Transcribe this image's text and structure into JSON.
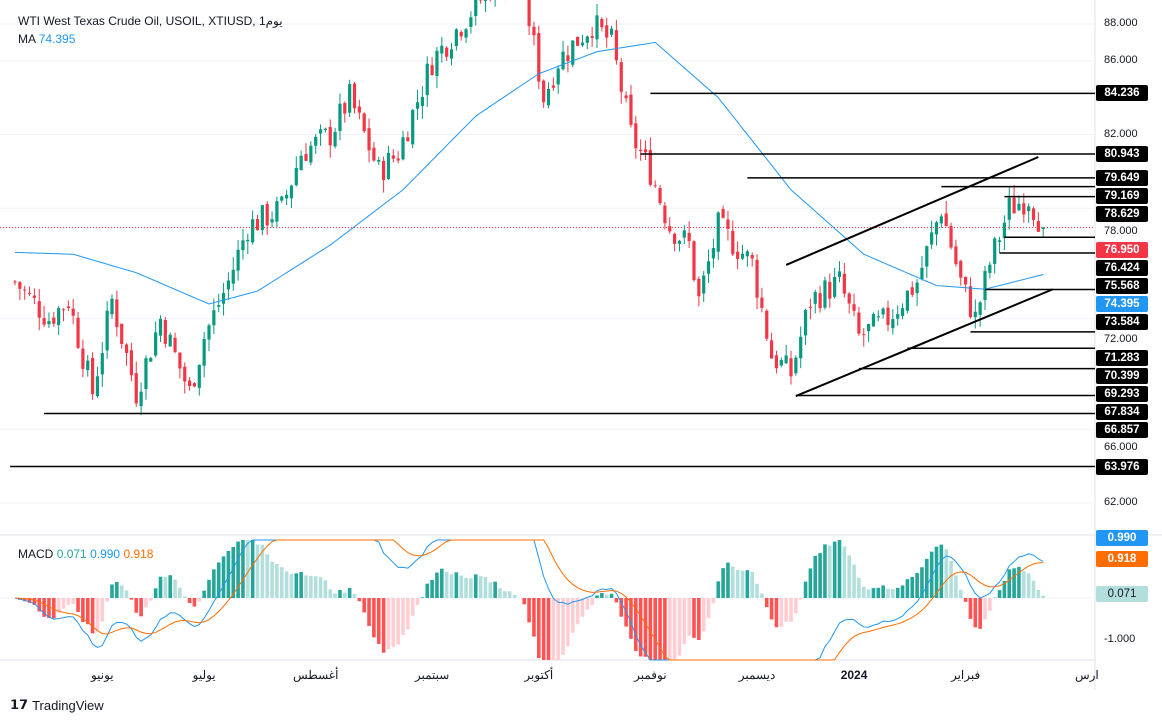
{
  "header": {
    "title": "WTI West Texas Crude Oil, USOIL, XTIUSD, 1يوم",
    "ma_label": "MA",
    "ma_value": "74.395",
    "macd_label": "MACD",
    "macd_hist": "0.071",
    "macd_line": "0.990",
    "macd_signal": "0.918"
  },
  "footer": {
    "brand": "TradingView"
  },
  "colors": {
    "up": "#089981",
    "down": "#f23645",
    "ma": "#2196f3",
    "signal": "#ff6d00",
    "level": "#000000"
  },
  "chart_data": {
    "type": "candlestick",
    "title": "WTI West Texas Crude Oil, USOIL, XTIUSD, 1D",
    "ylim": [
      62,
      88.9
    ],
    "y_ticks": [
      "88.000",
      "86.000",
      "82.000",
      "78.000",
      "72.000",
      "66.000",
      "62.000"
    ],
    "y_tick_values": [
      88,
      86,
      82,
      78,
      72,
      66,
      62
    ],
    "x_labels": [
      {
        "text": "يونيو",
        "index": 18
      },
      {
        "text": "يوليو",
        "index": 39
      },
      {
        "text": "أغسطس",
        "index": 62
      },
      {
        "text": "سبتمبر",
        "index": 86
      },
      {
        "text": "أكتوبر",
        "index": 108
      },
      {
        "text": "نوفمبر",
        "index": 131
      },
      {
        "text": "ديسمبر",
        "index": 153
      },
      {
        "text": "2024",
        "index": 173
      },
      {
        "text": "فبراير",
        "index": 196
      },
      {
        "text": "ارس",
        "index": 221
      }
    ],
    "close_path": [
      [
        0,
        74
      ],
      [
        7,
        72
      ],
      [
        11,
        73
      ],
      [
        16,
        68
      ],
      [
        20,
        73
      ],
      [
        25,
        68
      ],
      [
        30,
        72
      ],
      [
        36,
        68
      ],
      [
        39,
        71
      ],
      [
        44,
        74
      ],
      [
        48,
        77
      ],
      [
        55,
        78
      ],
      [
        59,
        81
      ],
      [
        65,
        82
      ],
      [
        69,
        84
      ],
      [
        75,
        80
      ],
      [
        79,
        81
      ],
      [
        86,
        86
      ],
      [
        92,
        88
      ],
      [
        98,
        90
      ],
      [
        104,
        91
      ],
      [
        109,
        84
      ],
      [
        112,
        86
      ],
      [
        119,
        88
      ],
      [
        123,
        87
      ],
      [
        127,
        82
      ],
      [
        131,
        80
      ],
      [
        135,
        77
      ],
      [
        139,
        76
      ],
      [
        141,
        73
      ],
      [
        145,
        77
      ],
      [
        152,
        75
      ],
      [
        156,
        70
      ],
      [
        160,
        69
      ],
      [
        164,
        73
      ],
      [
        170,
        74
      ],
      [
        174,
        71
      ],
      [
        180,
        72
      ],
      [
        186,
        74
      ],
      [
        191,
        78
      ],
      [
        195,
        74
      ],
      [
        198,
        72
      ],
      [
        201,
        75
      ],
      [
        205,
        78
      ],
      [
        209,
        78.6
      ],
      [
        212,
        76.95
      ]
    ],
    "ma_path": [
      [
        0,
        75.6
      ],
      [
        12,
        75.5
      ],
      [
        25,
        74.5
      ],
      [
        40,
        72.8
      ],
      [
        50,
        73.5
      ],
      [
        65,
        76
      ],
      [
        80,
        79
      ],
      [
        95,
        83
      ],
      [
        108,
        85.3
      ],
      [
        120,
        86.5
      ],
      [
        132,
        87
      ],
      [
        145,
        84
      ],
      [
        160,
        79
      ],
      [
        175,
        75.5
      ],
      [
        190,
        73.8
      ],
      [
        200,
        73.6
      ],
      [
        212,
        74.4
      ]
    ],
    "ma": {
      "name": "MA",
      "last": 74.395
    },
    "current_price": 76.95,
    "levels": [
      {
        "price": 84.236,
        "label": "84.236",
        "from": 131
      },
      {
        "price": 80.943,
        "label": "80.943",
        "from": 129
      },
      {
        "price": 79.649,
        "label": "79.649",
        "from": 151
      },
      {
        "price": 79.169,
        "label": "79.169",
        "from": 191
      },
      {
        "price": 78.629,
        "label": "78.629",
        "from": 204
      },
      {
        "price": 76.424,
        "label": "76.424",
        "from": 204
      },
      {
        "price": 75.568,
        "label": "75.568",
        "from": 203
      },
      {
        "price": 73.584,
        "label": "73.584",
        "from": 200
      },
      {
        "price": 71.283,
        "label": "71.283",
        "from": 197
      },
      {
        "price": 70.399,
        "label": "70.399",
        "from": 184
      },
      {
        "price": 69.293,
        "label": "69.293",
        "from": 174
      },
      {
        "price": 67.834,
        "label": "67.834",
        "from": 161
      },
      {
        "price": 66.857,
        "label": "66.857",
        "from": 6
      },
      {
        "price": 63.976,
        "label": "63.976",
        "from": -1
      }
    ],
    "trendlines": [
      [
        [
          159,
          74.92
        ],
        [
          211,
          80.78
        ]
      ],
      [
        [
          161,
          67.8
        ],
        [
          214,
          73.6
        ]
      ]
    ],
    "macd": {
      "hist": 0.071,
      "macd": 0.99,
      "signal": 0.918,
      "y_tick": "-1.000"
    }
  }
}
